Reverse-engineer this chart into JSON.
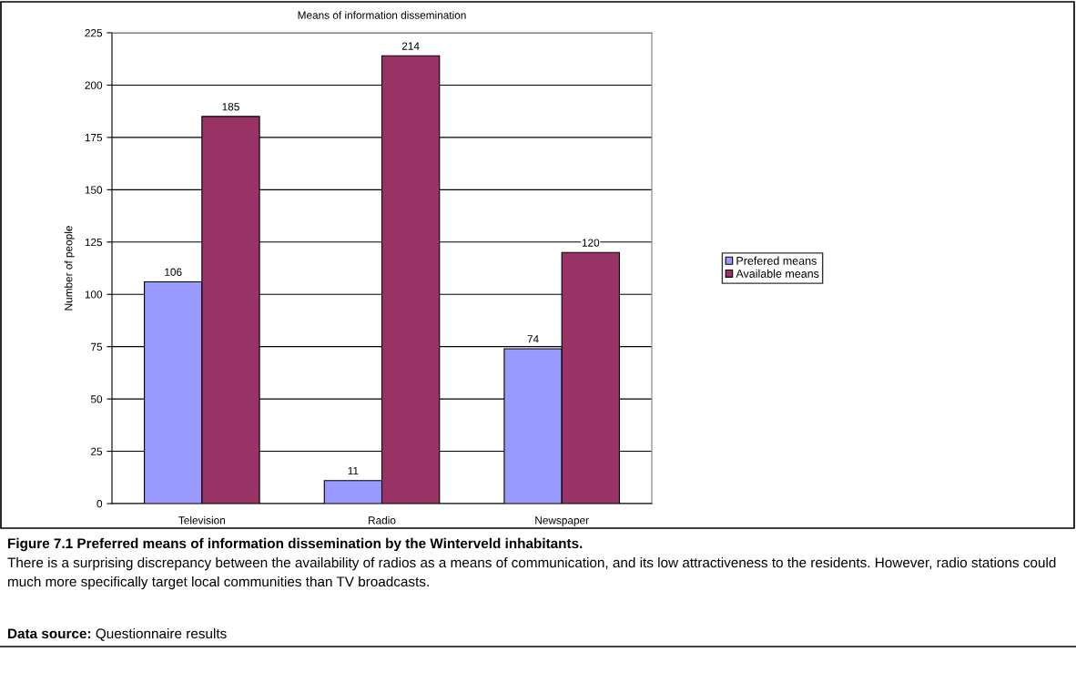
{
  "chart_data": {
    "type": "bar",
    "title": "Means of information dissemination",
    "ylabel": "Number of people",
    "categories": [
      "Television",
      "Radio",
      "Newspaper"
    ],
    "series": [
      {
        "name": "Prefered means",
        "color": "#9999ff",
        "values": [
          106,
          11,
          74
        ]
      },
      {
        "name": "Available means",
        "color": "#993366",
        "values": [
          185,
          214,
          120
        ]
      }
    ],
    "ylim": [
      0,
      225
    ],
    "yticks": [
      0,
      25,
      50,
      75,
      100,
      125,
      150,
      175,
      200,
      225
    ],
    "grid": "y",
    "legend": "right",
    "data_labels": true,
    "annotations": [
      "Figure 7.1 Preferred means of information dissemination by the Winterveld inhabitants.",
      "There is a surprising discrepancy between the availability of radios as a means of communication, and its low attractiveness to the residents. However, radio stations could much more specifically target local communities than TV broadcasts.",
      "Data source: Questionnaire results"
    ]
  }
}
